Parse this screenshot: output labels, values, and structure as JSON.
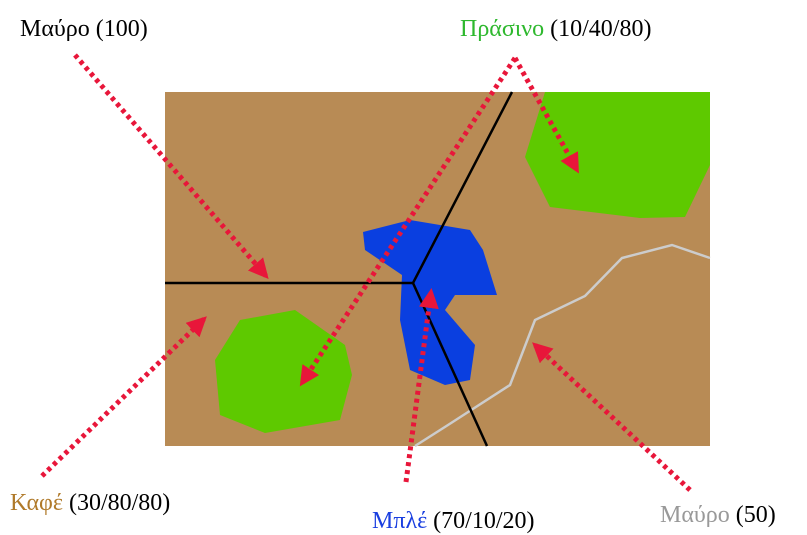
{
  "labels": [
    {
      "name": "Μαύρο",
      "value": "(100)"
    },
    {
      "name": "Πράσινο",
      "value": "(10/40/80)"
    },
    {
      "name": "Καφέ",
      "value": "(30/80/80)"
    },
    {
      "name": "Μπλέ",
      "value": "(70/10/20)"
    },
    {
      "name": "Μαύρο",
      "value": "(50)"
    }
  ]
}
